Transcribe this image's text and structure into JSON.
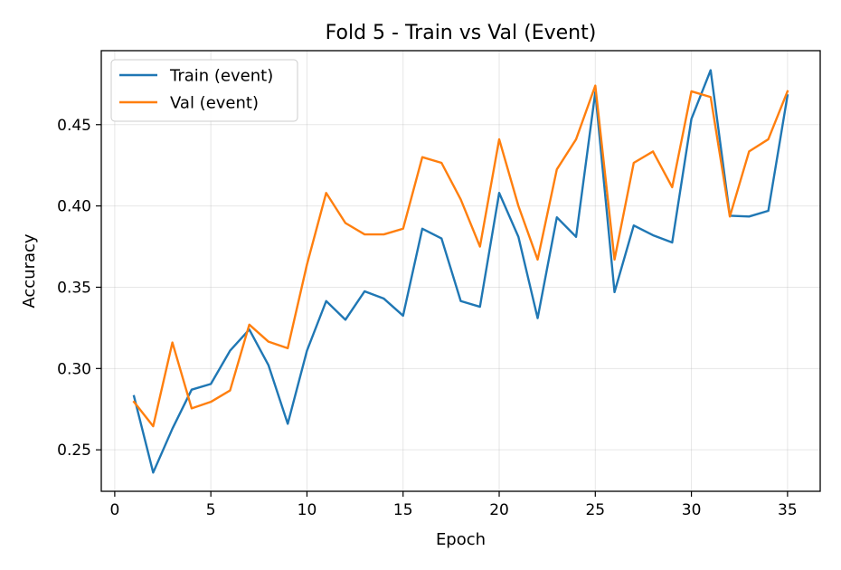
{
  "chart_data": {
    "type": "line",
    "title": "Fold 5 - Train vs Val (Event)",
    "xlabel": "Epoch",
    "ylabel": "Accuracy",
    "xlim": [
      -0.7,
      36.7
    ],
    "ylim": [
      0.2245,
      0.4955
    ],
    "xticks": [
      0,
      5,
      10,
      15,
      20,
      25,
      30,
      35
    ],
    "yticks": [
      0.25,
      0.3,
      0.35,
      0.4,
      0.45
    ],
    "ytick_labels": [
      "0.25",
      "0.30",
      "0.35",
      "0.40",
      "0.45"
    ],
    "grid": true,
    "legend_position": "upper-left",
    "x": [
      1,
      2,
      3,
      4,
      5,
      6,
      7,
      8,
      9,
      10,
      11,
      12,
      13,
      14,
      15,
      16,
      17,
      18,
      19,
      20,
      21,
      22,
      23,
      24,
      25,
      26,
      27,
      28,
      29,
      30,
      31,
      32,
      33,
      34,
      35
    ],
    "series": [
      {
        "name": "Train (event)",
        "color": "#1f77b4",
        "values": [
          0.283,
          0.236,
          0.263,
          0.287,
          0.2905,
          0.311,
          0.324,
          0.302,
          0.266,
          0.311,
          0.3415,
          0.33,
          0.3475,
          0.343,
          0.3325,
          0.386,
          0.38,
          0.3415,
          0.338,
          0.408,
          0.381,
          0.331,
          0.393,
          0.381,
          0.47,
          0.347,
          0.388,
          0.382,
          0.3775,
          0.4535,
          0.4835,
          0.394,
          0.3935,
          0.397,
          0.468
        ]
      },
      {
        "name": "Val (event)",
        "color": "#ff7f0e",
        "values": [
          0.2795,
          0.2645,
          0.316,
          0.2755,
          0.2795,
          0.2865,
          0.327,
          0.3165,
          0.3125,
          0.364,
          0.408,
          0.3895,
          0.3825,
          0.3825,
          0.386,
          0.43,
          0.4265,
          0.404,
          0.375,
          0.441,
          0.4,
          0.367,
          0.4225,
          0.441,
          0.474,
          0.367,
          0.4265,
          0.4335,
          0.4115,
          0.4705,
          0.467,
          0.3935,
          0.4335,
          0.441,
          0.4705
        ]
      }
    ]
  }
}
